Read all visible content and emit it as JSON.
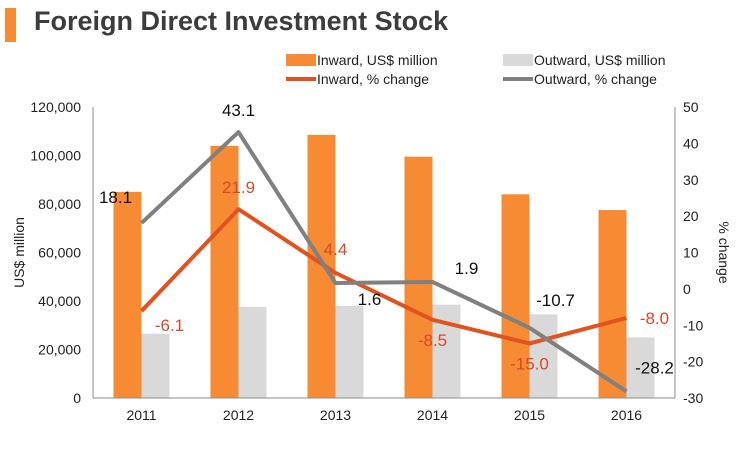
{
  "title": "Foreign Direct Investment Stock",
  "colors": {
    "inward_bar": "#f68b33",
    "outward_bar": "#d9d9d9",
    "inward_line": "#e2521f",
    "outward_line": "#808080",
    "title_accent": "#f68b33",
    "label_red": "#d9482b"
  },
  "chart_data": {
    "type": "bar",
    "title": "Foreign Direct Investment Stock",
    "categories": [
      "2011",
      "2012",
      "2013",
      "2014",
      "2015",
      "2016"
    ],
    "series": [
      {
        "name": "Inward, US$ million",
        "type": "bar",
        "axis": "left",
        "values": [
          85000,
          104000,
          108500,
          99500,
          84000,
          77500
        ]
      },
      {
        "name": "Outward, US$ million",
        "type": "bar",
        "axis": "left",
        "values": [
          26500,
          37500,
          38000,
          38500,
          34500,
          25000
        ]
      },
      {
        "name": "Inward, % change",
        "type": "line",
        "axis": "right",
        "values": [
          -6.1,
          21.9,
          4.4,
          -8.5,
          -15.0,
          -8.0
        ],
        "labels": [
          "-6.1",
          "21.9",
          "4.4",
          "-8.5",
          "-15.0",
          "-8.0"
        ]
      },
      {
        "name": "Outward, % change",
        "type": "line",
        "axis": "right",
        "values": [
          18.1,
          43.1,
          1.6,
          1.9,
          -10.7,
          -28.2
        ],
        "labels": [
          "18.1",
          "43.1",
          "1.6",
          "1.9",
          "-10.7",
          "-28.2"
        ]
      }
    ],
    "ylabel": "US$ million",
    "ylim": [
      0,
      120000
    ],
    "yticks": [
      0,
      20000,
      40000,
      60000,
      80000,
      100000,
      120000
    ],
    "ytick_labels": [
      "0",
      "20,000",
      "40,000",
      "60,000",
      "80,000",
      "100,000",
      "120,000"
    ],
    "y2label": "% change",
    "y2lim": [
      -30,
      50
    ],
    "y2ticks": [
      -30,
      -20,
      -10,
      0,
      10,
      20,
      30,
      40,
      50
    ],
    "y2tick_labels": [
      "-30",
      "-20",
      "-10",
      "0",
      "10",
      "20",
      "30",
      "40",
      "50"
    ],
    "legend": "top-right",
    "grid": false
  }
}
